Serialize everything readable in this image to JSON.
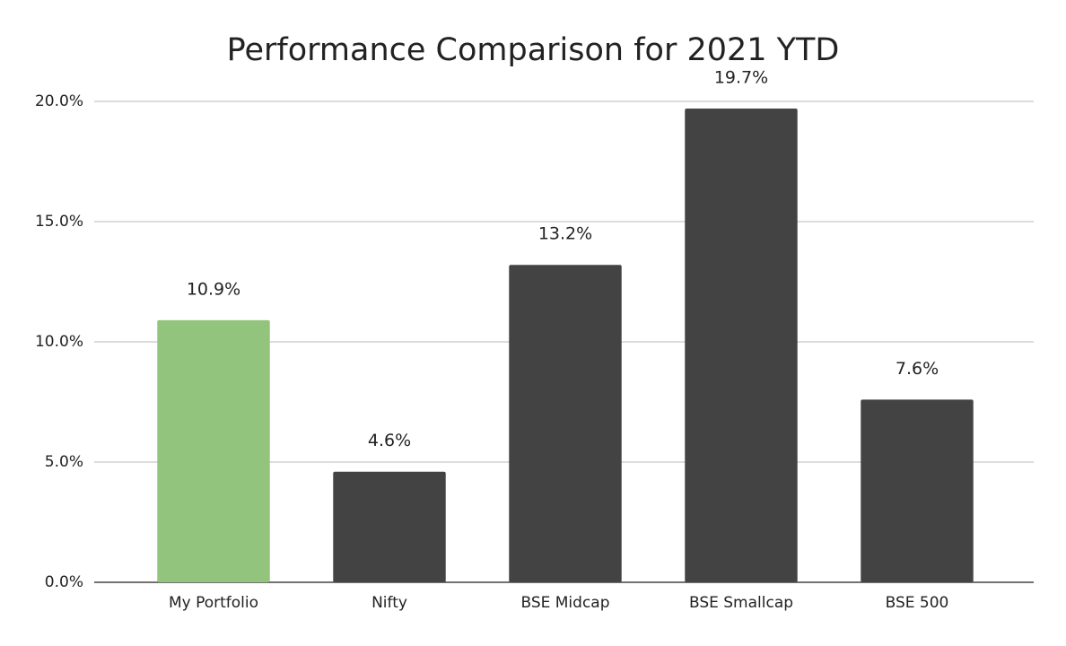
{
  "chart_data": {
    "type": "bar",
    "title": "Performance Comparison for 2021 YTD",
    "categories": [
      "My Portfolio",
      "Nifty",
      "BSE Midcap",
      "BSE Smallcap",
      "BSE 500"
    ],
    "values": [
      10.9,
      4.6,
      13.2,
      19.7,
      7.6
    ],
    "value_labels": [
      "10.9%",
      "4.6%",
      "13.2%",
      "19.7%",
      "7.6%"
    ],
    "colors": [
      "#93c47d",
      "#434343",
      "#434343",
      "#434343",
      "#434343"
    ],
    "ylim": [
      0,
      20
    ],
    "yticks": [
      {
        "value": 0,
        "label": "0.0%"
      },
      {
        "value": 5,
        "label": "5.0%"
      },
      {
        "value": 10,
        "label": "10.0%"
      },
      {
        "value": 15,
        "label": "15.0%"
      },
      {
        "value": 20,
        "label": "20.0%"
      }
    ],
    "grid": true
  }
}
